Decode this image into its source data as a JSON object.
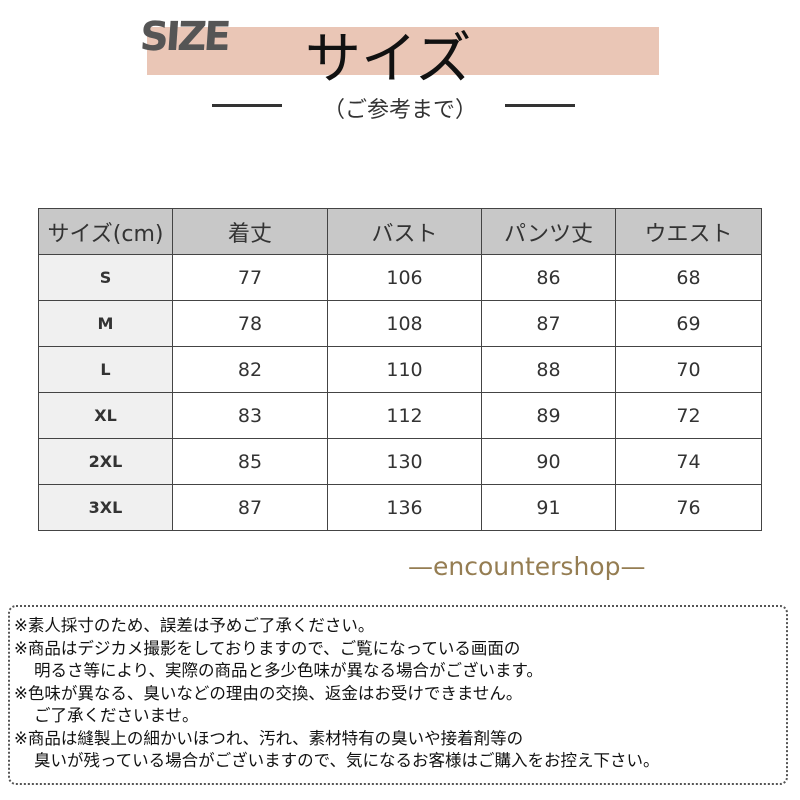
{
  "header": {
    "logo": "SIZE",
    "title": "サイズ",
    "subtitle": "（ご参考まで）",
    "band_color": "#eac6b6"
  },
  "table": {
    "columns": [
      "サイズ(cm)",
      "着丈",
      "バスト",
      "パンツ丈",
      "ウエスト"
    ],
    "rows": [
      [
        "S",
        "77",
        "106",
        "86",
        "68"
      ],
      [
        "M",
        "78",
        "108",
        "87",
        "69"
      ],
      [
        "L",
        "82",
        "110",
        "88",
        "70"
      ],
      [
        "XL",
        "83",
        "112",
        "89",
        "72"
      ],
      [
        "2XL",
        "85",
        "130",
        "90",
        "74"
      ],
      [
        "3XL",
        "87",
        "136",
        "91",
        "76"
      ]
    ]
  },
  "watermark": "—encountershop—",
  "notes": [
    "※素人採寸のため、誤差は予めご了承ください。",
    "※商品はデジカメ撮影をしておりますので、ご覧になっている画面の",
    "明るさ等により、実際の商品と多少色味が異なる場合がございます。",
    "※色味が異なる、臭いなどの理由の交換、返金はお受けできません。",
    "ご了承くださいませ。",
    "※商品は縫製上の細かいほつれ、汚れ、素材特有の臭いや接着剤等の",
    "臭いが残っている場合がございますので、気になるお客様はご購入をお控え下さい。"
  ]
}
